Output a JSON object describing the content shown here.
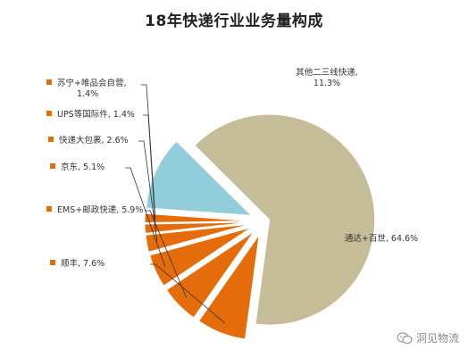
{
  "chart_data": {
    "type": "pie",
    "title": "18年快递行业业务量构成",
    "slices": [
      {
        "label": "顺丰, 7.6%",
        "value": 7.6,
        "color": "#e46c0a"
      },
      {
        "label": "EMS+邮政快递, 5.9%",
        "value": 5.9,
        "color": "#e46c0a"
      },
      {
        "label": "京东, 5.1%",
        "value": 5.1,
        "color": "#e46c0a"
      },
      {
        "label": "快递大包裹, 2.6%",
        "value": 2.6,
        "color": "#e46c0a"
      },
      {
        "label": "UPS等国际件, 1.4%",
        "value": 1.4,
        "color": "#e46c0a"
      },
      {
        "label": "苏宁+唯品会自营,\n1.4%",
        "value": 1.4,
        "color": "#e46c0a"
      },
      {
        "label": "其他二三线快递,\n11.3%",
        "value": 11.3,
        "color": "#92cddc"
      },
      {
        "label": "通达+百世, 64.6%",
        "value": 64.6,
        "color": "#c4bd97"
      }
    ]
  },
  "watermark": {
    "text": "洞见物流",
    "icon": "wechat-icon"
  }
}
